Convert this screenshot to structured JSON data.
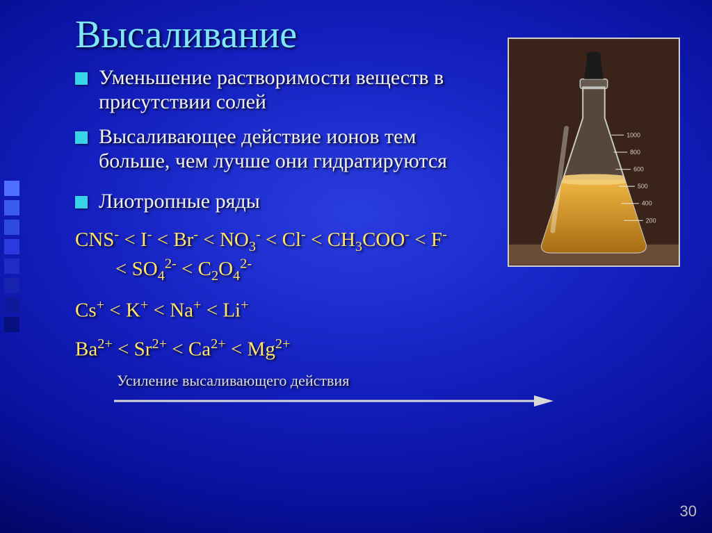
{
  "background": {
    "gradient_center": "#2a3de0",
    "gradient_mid": "#08109a",
    "gradient_edge": "#000028"
  },
  "deco_squares": [
    "#4e6fff",
    "#3a5af0",
    "#2e4ae0",
    "#2a3ae0",
    "#1f2cc8",
    "#1822b0",
    "#0f1898",
    "#081080"
  ],
  "title": {
    "text": "Высаливание",
    "color": "#7fe6ff",
    "fontsize": 56
  },
  "bullets": [
    {
      "text": "Уменьшение растворимости веществ в присутствии солей"
    },
    {
      "text": "Высаливающее действие ионов тем больше, чем лучше они гидратируются"
    },
    {
      "text": "Лиотропные ряды"
    }
  ],
  "bullet_style": {
    "marker_color": "#3ad2e8",
    "text_color": "#f0f0f0",
    "fontsize": 30
  },
  "series": {
    "anions_line1": "CNS⁻ < I⁻ < Br⁻ < NO₃⁻ < Cl⁻ < CH₃COO⁻ < F⁻",
    "anions_line2": "< SO₄²⁻ < C₂O₄²⁻",
    "cations1": "Cs⁺ < K⁺ < Na⁺ < Li⁺",
    "cations2": "Ba²⁺ < Sr²⁺ < Ca²⁺ < Mg²⁺",
    "color": "#ffe36b",
    "fontsize": 29
  },
  "arrow": {
    "label": "Усиление высаливающего действия",
    "line_color": "#d8d8d8",
    "label_color": "#dddddd",
    "label_fontsize": 22
  },
  "flask": {
    "border_color": "#cfd0d0",
    "bg_color": "#4a2e20",
    "glass_color": "#d0d4cc",
    "liquid_top_color": "#f0b642",
    "liquid_bottom_color": "#a46a12",
    "stopper_color": "#1a1a1a"
  },
  "pagenum": "30"
}
